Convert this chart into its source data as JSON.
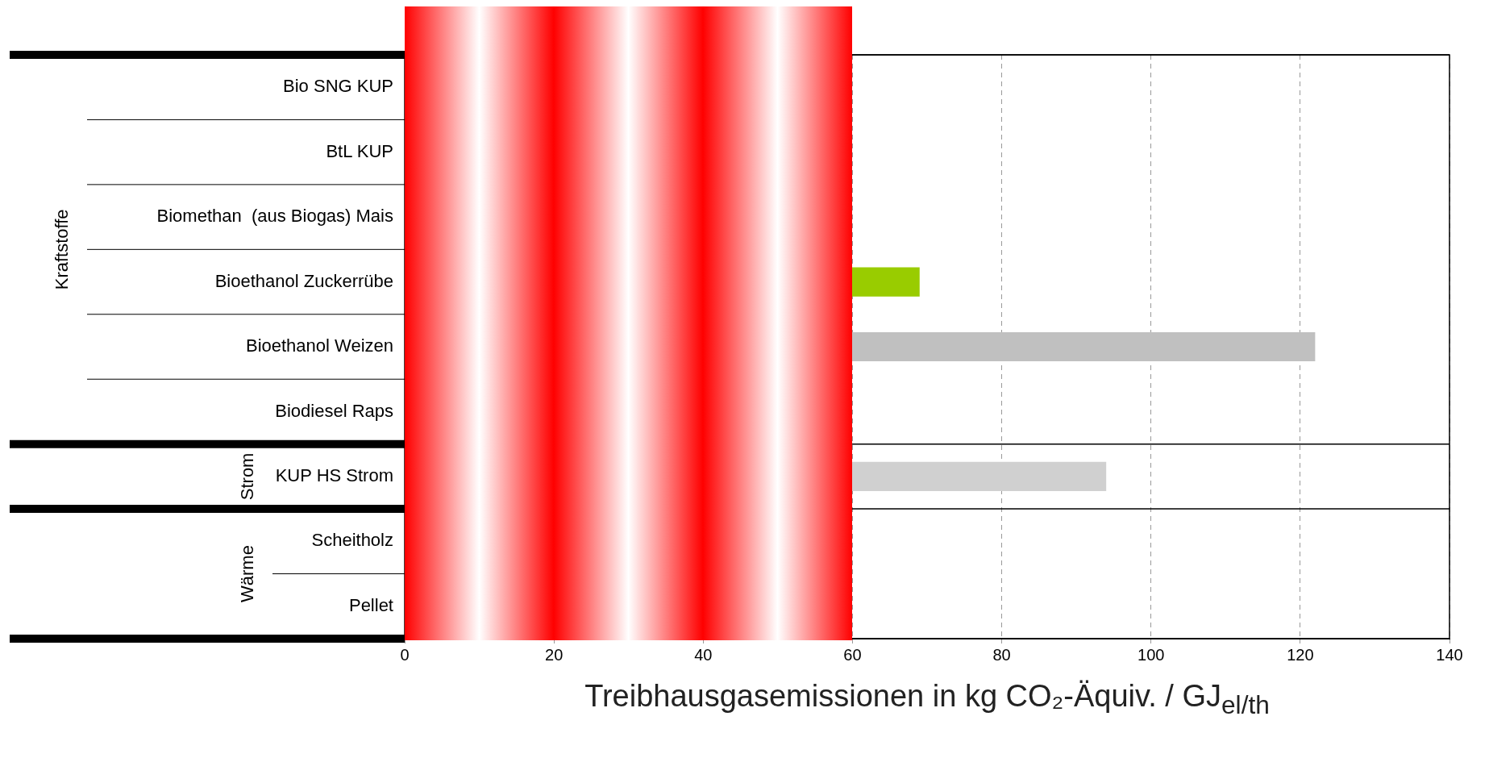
{
  "chart_data": {
    "type": "bar",
    "orientation": "horizontal",
    "xlabel": "Treibhausgasemissionen in kg CO₂-Äquiv. / GJ$_{el/th}$",
    "categories": [
      "Bio SNG KUP",
      "BtL KUP",
      "Biomethan  (aus Biogas) Mais",
      "Bioethanol Zuckerrübe",
      "Bioethanol Weizen",
      "Biodiesel Raps",
      "KUP HS Strom",
      "Scheitholz",
      "Pellet"
    ],
    "values": [
      null,
      null,
      null,
      69,
      122,
      null,
      94,
      null,
      null
    ],
    "colors": [
      "#c0c0c0",
      "#c0c0c0",
      "#c0c0c0",
      "#99cc00",
      "#c0c0c0",
      "#c0c0c0",
      "#d0d0d0",
      "#c0c0c0",
      "#c0c0c0"
    ],
    "xlim": [
      0,
      140
    ],
    "xticks": [
      0,
      20,
      40,
      60,
      80,
      100,
      120,
      140
    ],
    "grid": "x",
    "legend": false,
    "annotations": [
      "Kraftstoffe",
      "Strom",
      "Wärme"
    ]
  }
}
